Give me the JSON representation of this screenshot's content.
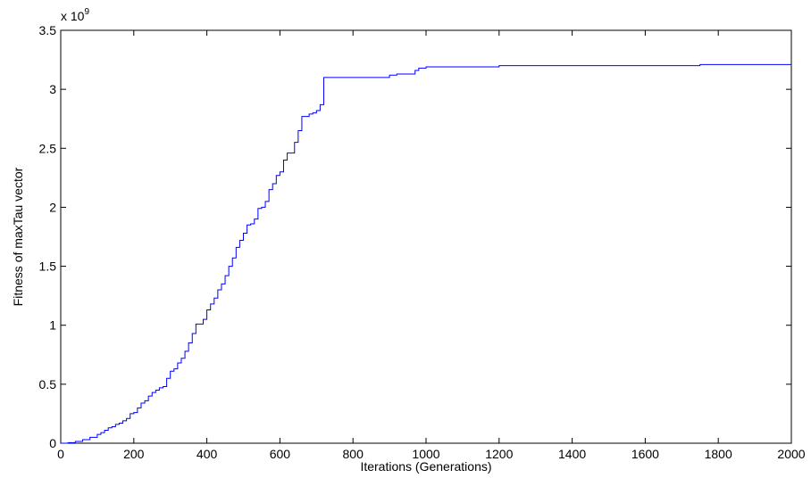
{
  "chart_data": {
    "type": "line",
    "title": "",
    "xlabel": "Iterations (Generations)",
    "ylabel": "Fitness of maxTau vector",
    "y_multiplier_base": "x 10",
    "y_multiplier_exp": "9",
    "xlim": [
      0,
      2000
    ],
    "ylim": [
      0,
      3.5
    ],
    "x_ticks": [
      0,
      200,
      400,
      600,
      800,
      1000,
      1200,
      1400,
      1600,
      1800,
      2000
    ],
    "x_tick_labels": [
      "0",
      "200",
      "400",
      "600",
      "800",
      "1000",
      "1200",
      "1400",
      "1600",
      "1800",
      "2000"
    ],
    "y_ticks": [
      0,
      0.5,
      1,
      1.5,
      2,
      2.5,
      3,
      3.5
    ],
    "y_tick_labels": [
      "0",
      "0.5",
      "1",
      "1.5",
      "2",
      "2.5",
      "3",
      "3.5"
    ],
    "grid": false,
    "line_color": "#0000ff",
    "series": [
      {
        "x": [
          0,
          20,
          40,
          60,
          80,
          100,
          110,
          120,
          130,
          140,
          150,
          160,
          170,
          180,
          190,
          200,
          210,
          220,
          230,
          240,
          250,
          260,
          270,
          280,
          290,
          300,
          310,
          320,
          330,
          340,
          350,
          360,
          370,
          380,
          390,
          400,
          410,
          420,
          430,
          440,
          450,
          460,
          470,
          480,
          490,
          500,
          510,
          520,
          530,
          540,
          550,
          560,
          570,
          580,
          590,
          600,
          610,
          620,
          630,
          640,
          650,
          660,
          670,
          680,
          690,
          700,
          710,
          720,
          730,
          740,
          800,
          880,
          900,
          920,
          970,
          980,
          1000,
          1010,
          1020,
          1100,
          1200,
          1210,
          1500,
          1740,
          1750,
          2000
        ],
        "values": [
          0,
          0.005,
          0.015,
          0.03,
          0.05,
          0.075,
          0.09,
          0.11,
          0.13,
          0.14,
          0.16,
          0.17,
          0.19,
          0.21,
          0.25,
          0.26,
          0.3,
          0.34,
          0.36,
          0.4,
          0.43,
          0.45,
          0.47,
          0.48,
          0.55,
          0.61,
          0.63,
          0.68,
          0.72,
          0.78,
          0.85,
          0.93,
          1.01,
          1.01,
          1.05,
          1.13,
          1.18,
          1.23,
          1.3,
          1.35,
          1.42,
          1.5,
          1.57,
          1.66,
          1.72,
          1.78,
          1.85,
          1.86,
          1.9,
          1.99,
          2.0,
          2.05,
          2.15,
          2.2,
          2.27,
          2.3,
          2.4,
          2.46,
          2.46,
          2.55,
          2.65,
          2.77,
          2.77,
          2.79,
          2.8,
          2.82,
          2.87,
          3.1,
          3.1,
          3.1,
          3.1,
          3.1,
          3.12,
          3.13,
          3.16,
          3.18,
          3.19,
          3.19,
          3.19,
          3.19,
          3.2,
          3.2,
          3.2,
          3.2,
          3.21,
          3.21
        ]
      }
    ]
  }
}
